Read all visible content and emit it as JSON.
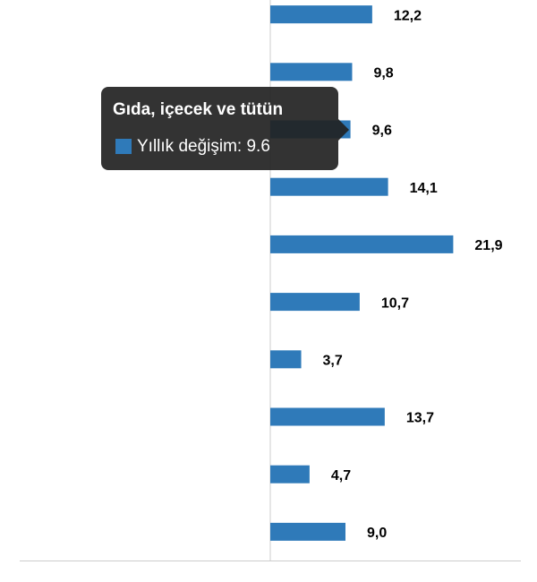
{
  "chart_data": {
    "type": "bar",
    "orientation": "horizontal",
    "categories": [
      null,
      null,
      "Gıda, içecek ve tütün",
      null,
      null,
      null,
      null,
      null,
      null,
      null
    ],
    "series": [
      {
        "name": "Yıllık değişim",
        "color": "#2f7ab9",
        "values": [
          12.2,
          9.8,
          9.6,
          14.1,
          21.9,
          10.7,
          3.7,
          13.7,
          4.7,
          9.0
        ],
        "value_labels": [
          "12,2",
          "9,8",
          "9,6",
          "14,1",
          "21,9",
          "10,7",
          "3,7",
          "13,7",
          "4,7",
          "9,0"
        ]
      }
    ],
    "xlim": [
      -30,
      30
    ],
    "tooltip_index": 2
  }
}
